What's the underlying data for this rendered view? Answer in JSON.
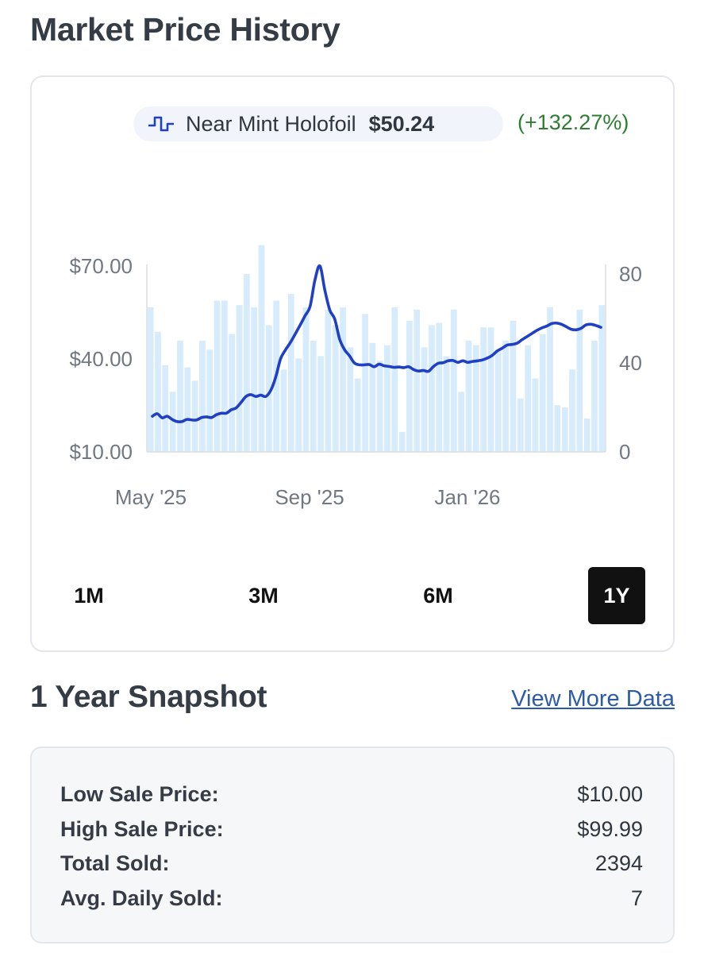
{
  "page_title": "Market Price History",
  "legend": {
    "series_name": "Near Mint Holofoil",
    "price": "$50.24",
    "change": "(+132.27%)",
    "icon": "step-line-icon",
    "series_color": "#1f3fc4",
    "change_color": "#2e7d32"
  },
  "range_buttons": [
    {
      "label": "1M",
      "active": false
    },
    {
      "label": "3M",
      "active": false
    },
    {
      "label": "6M",
      "active": false
    },
    {
      "label": "1Y",
      "active": true
    }
  ],
  "snapshot": {
    "title": "1 Year Snapshot",
    "view_more": "View More Data",
    "stats": [
      {
        "label": "Low Sale Price:",
        "value": "$10.00"
      },
      {
        "label": "High Sale Price:",
        "value": "$99.99"
      },
      {
        "label": "Total Sold:",
        "value": "2394"
      },
      {
        "label": "Avg. Daily Sold:",
        "value": "7"
      }
    ]
  },
  "chart_data": {
    "type": "line",
    "x_ticks": [
      "May '25",
      "Sep '25",
      "Jan '26"
    ],
    "y_left_ticks": [
      "$70.00",
      "$40.00",
      "$10.00"
    ],
    "y_left_range": [
      10,
      70
    ],
    "y_right_ticks": [
      "80",
      "40",
      "0"
    ],
    "y_right_range": [
      0,
      100
    ],
    "line_color": "#1f3fc4",
    "bar_color": "#d6ebfb",
    "price_series": [
      21.5,
      22.3,
      21.0,
      21.5,
      20.5,
      19.8,
      19.8,
      20.5,
      20.3,
      20.3,
      21.1,
      21.3,
      21.1,
      22.0,
      22.5,
      22.5,
      23.6,
      24.2,
      26.0,
      27.9,
      28.5,
      27.9,
      28.3,
      27.9,
      29.8,
      34.0,
      40.0,
      42.9,
      45.3,
      48.1,
      51.0,
      54.0,
      57.0,
      65.6,
      70.0,
      62.2,
      55.8,
      52.9,
      46.4,
      43.0,
      41.0,
      38.7,
      38.1,
      38.1,
      38.2,
      37.5,
      38.3,
      37.8,
      37.6,
      37.3,
      37.4,
      37.2,
      37.5,
      36.6,
      36.1,
      36.3,
      36.0,
      37.5,
      38.6,
      38.8,
      39.4,
      39.5,
      38.9,
      39.4,
      38.9,
      39.2,
      39.4,
      39.7,
      40.3,
      41.2,
      42.6,
      43.5,
      44.5,
      44.7,
      45.1,
      46.2,
      47.2,
      48.2,
      49.2,
      50.0,
      50.6,
      51.4,
      51.6,
      51.2,
      50.4,
      49.6,
      49.4,
      49.9,
      51.0,
      51.2,
      50.8,
      50.2
    ],
    "volume_series": [
      65,
      54,
      39,
      27,
      50,
      38,
      32,
      50,
      46,
      68,
      68,
      53,
      66,
      80,
      65,
      93,
      57,
      68,
      37,
      71,
      42,
      65,
      50,
      43,
      64,
      57,
      65,
      47,
      33,
      62,
      49,
      41,
      48,
      65,
      9,
      59,
      64,
      47,
      57,
      58,
      43,
      64,
      27,
      50,
      48,
      56,
      56,
      46,
      50,
      59,
      24,
      48,
      33,
      53,
      65,
      21,
      20,
      37,
      64,
      15,
      50,
      66
    ]
  }
}
